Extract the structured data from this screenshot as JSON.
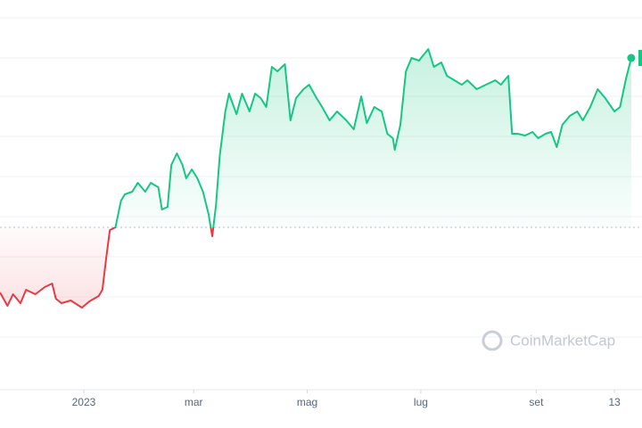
{
  "chart_data": {
    "type": "line",
    "x": [
      0,
      4,
      7,
      11,
      14,
      19,
      24,
      28,
      30,
      33,
      38,
      44,
      48,
      53,
      55,
      57,
      59,
      62,
      65,
      67,
      71,
      74,
      78,
      81,
      85,
      87,
      90,
      92,
      95,
      98,
      100,
      103,
      106,
      109,
      112,
      114,
      116,
      118,
      121,
      123,
      127,
      130,
      134,
      137,
      140,
      143,
      146,
      149,
      153,
      156,
      159,
      163,
      166,
      170,
      173,
      177,
      181,
      186,
      190,
      194,
      197,
      201,
      205,
      208,
      211,
      212,
      215,
      218,
      221,
      225,
      230,
      233,
      237,
      240,
      244,
      248,
      251,
      256,
      261,
      266,
      269,
      273,
      275,
      278,
      282,
      286,
      289,
      293,
      296,
      299,
      302,
      306,
      310,
      313,
      317,
      321,
      325,
      330,
      333,
      336,
      339
    ],
    "series": [
      {
        "values": [
          23,
          19.25,
          22.5,
          20,
          23.75,
          22.5,
          24.5,
          25.5,
          21.25,
          20,
          20.75,
          18.75,
          20.5,
          22,
          23.75,
          32.5,
          40.5,
          41.25,
          48.75,
          50.5,
          51.25,
          53.75,
          51.25,
          53.75,
          52.5,
          46.25,
          47,
          58.75,
          62,
          58.75,
          55,
          57.5,
          55,
          51.25,
          45,
          38.75,
          47.5,
          61.25,
          73.75,
          78.75,
          73,
          78.75,
          73.75,
          78.75,
          77.5,
          75,
          86.25,
          85,
          87,
          71.25,
          77.5,
          80,
          81.25,
          77.5,
          75,
          71.25,
          73.75,
          71.25,
          68.75,
          78,
          70.5,
          75,
          73.75,
          67.5,
          66.25,
          63,
          70,
          85,
          88.75,
          88,
          91.25,
          86.25,
          87.5,
          83.75,
          82.5,
          81.25,
          82.5,
          80,
          81.25,
          82.5,
          81.25,
          83.75,
          67.5,
          67.5,
          67,
          68,
          66.25,
          67.5,
          68,
          63.75,
          70,
          72.5,
          73.75,
          71.25,
          75,
          80,
          77.5,
          73.75,
          75,
          82.5,
          88.75
        ]
      }
    ],
    "baseline": 41.25,
    "up_color": "#16c784",
    "down_color": "#ea3943",
    "xlim": [
      0,
      340
    ],
    "ylim": [
      0,
      100
    ],
    "xticks": [
      {
        "value": 45,
        "label": "2023"
      },
      {
        "value": 104,
        "label": "mar"
      },
      {
        "value": 165,
        "label": "mag"
      },
      {
        "value": 226,
        "label": "lug"
      },
      {
        "value": 288,
        "label": "set"
      },
      {
        "value": 330,
        "label": "13"
      }
    ],
    "watermark": "CoinMarketCap"
  }
}
